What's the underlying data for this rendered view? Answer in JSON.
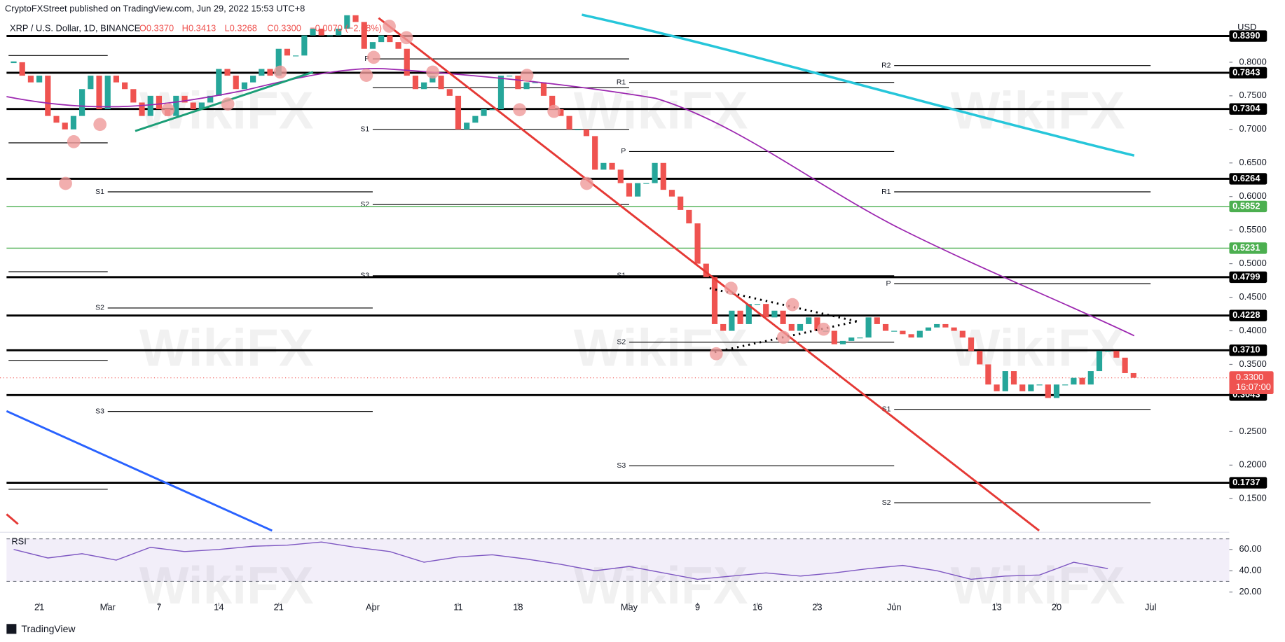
{
  "header": {
    "publisher": "CryptoFXStreet published on TradingView.com, Jun 29, 2022 15:53 UTC+8",
    "symbol": "XRP / U.S. Dollar, 1D, BINANCE",
    "ohlc": [
      "O0.3370",
      "H0.3413",
      "L0.3268",
      "C0.3300",
      "−0.0070 (−2.08%)"
    ]
  },
  "watermark": "WikiFX",
  "footer": "TradingView",
  "chart_data": {
    "type": "candlestick",
    "currency": "USD",
    "up_color": "#26a69a",
    "down_color": "#ef5350",
    "closes": [
      0.8,
      0.78,
      0.77,
      0.78,
      0.72,
      0.71,
      0.7,
      0.72,
      0.76,
      0.78,
      0.73,
      0.78,
      0.77,
      0.76,
      0.74,
      0.72,
      0.75,
      0.73,
      0.72,
      0.75,
      0.74,
      0.73,
      0.74,
      0.75,
      0.79,
      0.78,
      0.76,
      0.77,
      0.78,
      0.79,
      0.78,
      0.82,
      0.81,
      0.81,
      0.84,
      0.85,
      0.84,
      0.84,
      0.85,
      0.87,
      0.86,
      0.82,
      0.83,
      0.84,
      0.83,
      0.82,
      0.78,
      0.76,
      0.77,
      0.78,
      0.76,
      0.75,
      0.7,
      0.71,
      0.72,
      0.73,
      0.73,
      0.78,
      0.78,
      0.76,
      0.77,
      0.77,
      0.75,
      0.73,
      0.72,
      0.7,
      0.7,
      0.69,
      0.64,
      0.65,
      0.64,
      0.62,
      0.6,
      0.62,
      0.62,
      0.65,
      0.61,
      0.6,
      0.58,
      0.56,
      0.5,
      0.48,
      0.41,
      0.4,
      0.43,
      0.41,
      0.44,
      0.44,
      0.42,
      0.43,
      0.41,
      0.4,
      0.41,
      0.42,
      0.4,
      0.4,
      0.38,
      0.385,
      0.39,
      0.39,
      0.42,
      0.41,
      0.4,
      0.4,
      0.395,
      0.39,
      0.4,
      0.405,
      0.41,
      0.405,
      0.4,
      0.39,
      0.37,
      0.35,
      0.32,
      0.31,
      0.34,
      0.32,
      0.31,
      0.32,
      0.32,
      0.3,
      0.32,
      0.32,
      0.33,
      0.32,
      0.34,
      0.37,
      0.37,
      0.36,
      0.337,
      0.33
    ],
    "xlim": [
      -1.6,
      142.2
    ],
    "ylim": [
      0.1024,
      0.8927
    ],
    "xticks": [
      {
        "value": 3,
        "label": "21"
      },
      {
        "value": 11,
        "label": "Mar"
      },
      {
        "value": 17,
        "label": "7"
      },
      {
        "value": 24,
        "label": "14"
      },
      {
        "value": 31,
        "label": "21"
      },
      {
        "value": 42,
        "label": "Apr"
      },
      {
        "value": 52,
        "label": "11"
      },
      {
        "value": 59,
        "label": "18"
      },
      {
        "value": 72,
        "label": "May"
      },
      {
        "value": 80,
        "label": "9"
      },
      {
        "value": 87,
        "label": "16"
      },
      {
        "value": 94,
        "label": "23"
      },
      {
        "value": 103,
        "label": "Jun"
      },
      {
        "value": 115,
        "label": "13"
      },
      {
        "value": 122,
        "label": "20"
      },
      {
        "value": 133,
        "label": "Jul"
      }
    ],
    "yticks": [
      {
        "value": 0.15,
        "label": "0.1500"
      },
      {
        "value": 0.2,
        "label": "0.2000"
      },
      {
        "value": 0.25,
        "label": "0.2500"
      },
      {
        "value": 0.3,
        "label": "0.3000"
      },
      {
        "value": 0.35,
        "label": "0.3500"
      },
      {
        "value": 0.4,
        "label": "0.4000"
      },
      {
        "value": 0.45,
        "label": "0.4500"
      },
      {
        "value": 0.5,
        "label": "0.5000"
      },
      {
        "value": 0.55,
        "label": "0.5500"
      },
      {
        "value": 0.6,
        "label": "0.6000"
      },
      {
        "value": 0.65,
        "label": "0.6500"
      },
      {
        "value": 0.7,
        "label": "0.7000"
      },
      {
        "value": 0.75,
        "label": "0.7500"
      },
      {
        "value": 0.8,
        "label": "0.8000"
      }
    ],
    "levels": [
      {
        "value": 0.839,
        "label": "0.8390",
        "color": "#000000"
      },
      {
        "value": 0.7843,
        "label": "0.7843",
        "color": "#000000"
      },
      {
        "value": 0.7304,
        "label": "0.7304",
        "color": "#000000"
      },
      {
        "value": 0.6264,
        "label": "0.6264",
        "color": "#000000"
      },
      {
        "value": 0.5852,
        "label": "0.5852",
        "color": "#4caf50"
      },
      {
        "value": 0.5231,
        "label": "0.5231",
        "color": "#4caf50"
      },
      {
        "value": 0.4799,
        "label": "0.4799",
        "color": "#000000"
      },
      {
        "value": 0.4228,
        "label": "0.4228",
        "color": "#000000"
      },
      {
        "value": 0.371,
        "label": "0.3710",
        "color": "#000000"
      },
      {
        "value": 0.3043,
        "label": "0.3043",
        "color": "#000000"
      },
      {
        "value": 0.1737,
        "label": "0.1737",
        "color": "#000000"
      }
    ],
    "last_price": {
      "value": 0.33,
      "label": "0.3300",
      "countdown": "16:07:00",
      "color": "#ef5350"
    },
    "pivots": [
      {
        "value": 0.81,
        "start": -0.6,
        "end": 11
      },
      {
        "value": 0.68,
        "start": -0.6,
        "end": 11
      },
      {
        "value": 0.488,
        "start": -0.6,
        "end": 11
      },
      {
        "value": 0.356,
        "start": -0.6,
        "end": 11
      },
      {
        "value": 0.164,
        "start": -0.6,
        "end": 11
      },
      {
        "label": "S1",
        "value": 0.607,
        "start": 11,
        "end": 42
      },
      {
        "label": "S2",
        "value": 0.434,
        "start": 11,
        "end": 42
      },
      {
        "label": "S3",
        "value": 0.28,
        "start": 11,
        "end": 42
      },
      {
        "label": "P",
        "value": 0.805,
        "start": 42,
        "end": 72
      },
      {
        "value": 0.762,
        "start": 42,
        "end": 72
      },
      {
        "label": "S1",
        "value": 0.7,
        "start": 42,
        "end": 72
      },
      {
        "label": "S2",
        "value": 0.588,
        "start": 42,
        "end": 72
      },
      {
        "label": "S3",
        "value": 0.482,
        "start": 42,
        "end": 72
      },
      {
        "label": "R1",
        "value": 0.77,
        "start": 72,
        "end": 103
      },
      {
        "label": "P",
        "value": 0.667,
        "start": 72,
        "end": 103
      },
      {
        "label": "S1",
        "value": 0.482,
        "start": 72,
        "end": 103
      },
      {
        "label": "S2",
        "value": 0.383,
        "start": 72,
        "end": 103
      },
      {
        "label": "S3",
        "value": 0.199,
        "start": 72,
        "end": 103
      },
      {
        "label": "R2",
        "value": 0.795,
        "start": 103,
        "end": 133
      },
      {
        "label": "R1",
        "value": 0.607,
        "start": 103,
        "end": 133
      },
      {
        "label": "P",
        "value": 0.47,
        "start": 103,
        "end": 133
      },
      {
        "label": "S1",
        "value": 0.283,
        "start": 103,
        "end": 133
      },
      {
        "label": "S2",
        "value": 0.144,
        "start": 103,
        "end": 133
      }
    ],
    "rsi": {
      "title": "RSI",
      "color": "#7e57c2",
      "x": [
        0,
        4,
        8,
        12,
        16,
        20,
        24,
        28,
        32,
        36,
        40,
        44,
        48,
        52,
        56,
        60,
        64,
        68,
        72,
        76,
        80,
        84,
        88,
        92,
        96,
        100,
        104,
        108,
        112,
        116,
        120,
        124,
        128
      ],
      "values": [
        60,
        52,
        56,
        50,
        62,
        58,
        60,
        63,
        64,
        67,
        62,
        58,
        48,
        53,
        55,
        51,
        46,
        40,
        44,
        38,
        32,
        35,
        38,
        35,
        38,
        42,
        45,
        40,
        32,
        35,
        36,
        48,
        42
      ],
      "ylim": [
        10,
        74.6
      ],
      "band": [
        30,
        70
      ],
      "yticks": [
        {
          "value": 20,
          "label": "20.00"
        },
        {
          "value": 40,
          "label": "40.00"
        },
        {
          "value": 60,
          "label": "60.00"
        }
      ]
    }
  }
}
